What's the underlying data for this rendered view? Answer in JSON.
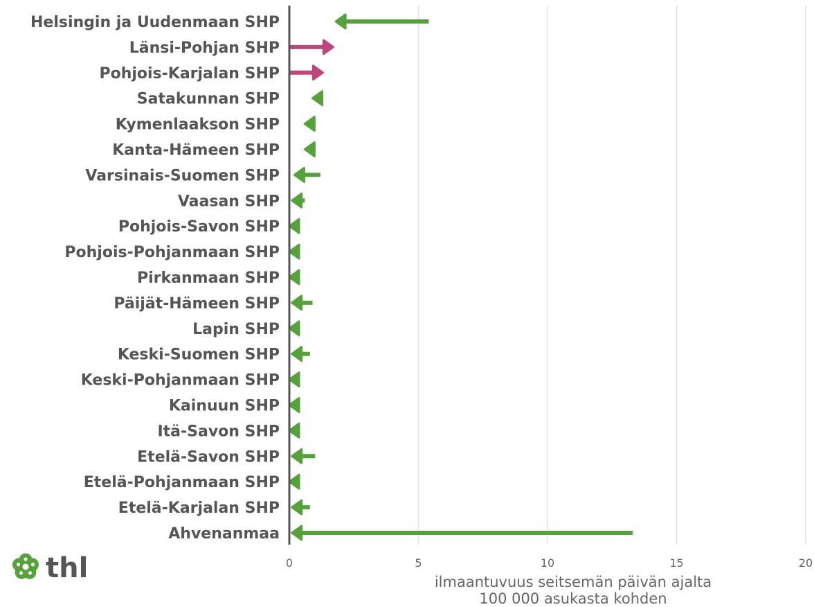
{
  "chart_data": {
    "type": "bar",
    "title": "",
    "xlabel_lines": [
      "ilmaantuvuus seitsemän päivän ajalta",
      "100 000 asukasta kohden"
    ],
    "xlim": [
      0,
      20
    ],
    "xticks": [
      "0",
      "5",
      "10",
      "15",
      "20"
    ],
    "grid": "vertical",
    "increase_color": "#c0457a",
    "decrease_color": "#55a23a",
    "axis_color": "#555555",
    "categories": [
      "Helsingin ja Uudenmaan SHP",
      "Länsi-Pohjan SHP",
      "Pohjois-Karjalan SHP",
      "Satakunnan SHP",
      "Kymenlaakson SHP",
      "Kanta-Hämeen SHP",
      "Varsinais-Suomen SHP",
      "Vaasan SHP",
      "Pohjois-Savon SHP",
      "Pohjois-Pohjanmaan SHP",
      "Pirkanmaan SHP",
      "Päijät-Hämeen SHP",
      "Lapin SHP",
      "Keski-Suomen SHP",
      "Keski-Pohjanmaan SHP",
      "Kainuun SHP",
      "Itä-Savon SHP",
      "Etelä-Savon SHP",
      "Etelä-Pohjanmaan SHP",
      "Etelä-Karjalan SHP",
      "Ahvenanmaa"
    ],
    "from": [
      5.4,
      0.0,
      0.0,
      1.3,
      1.0,
      1.0,
      1.2,
      0.6,
      0.3,
      0.3,
      0.3,
      0.9,
      0.3,
      0.8,
      0.3,
      0.3,
      0.3,
      1.0,
      0.3,
      0.8,
      13.3
    ],
    "to": [
      1.8,
      1.7,
      1.3,
      0.9,
      0.6,
      0.6,
      0.2,
      0.1,
      0.0,
      0.0,
      0.0,
      0.1,
      0.0,
      0.1,
      0.0,
      0.0,
      0.0,
      0.1,
      0.0,
      0.1,
      0.1
    ]
  },
  "logo": {
    "text": "thl",
    "color": "#55a23a"
  }
}
